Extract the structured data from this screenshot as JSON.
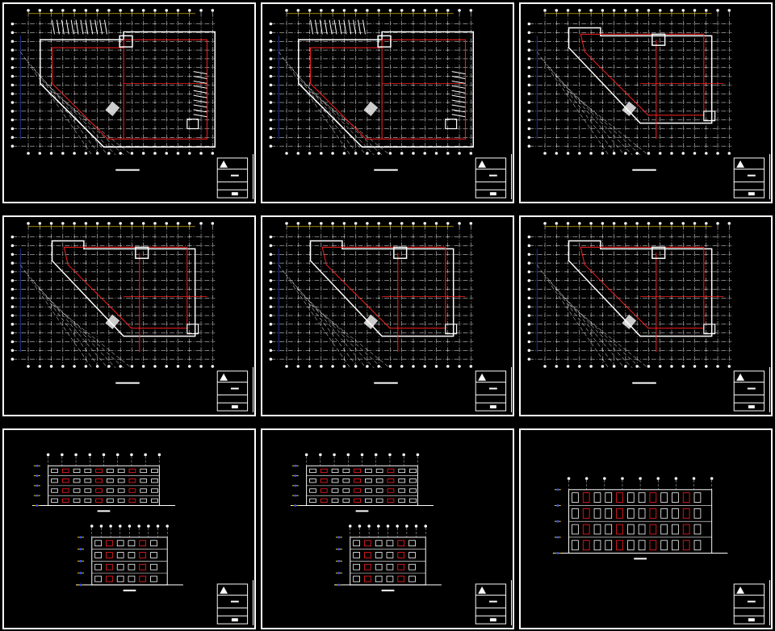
{
  "colors": {
    "background": "#000000",
    "frame": "#ffffff",
    "grid": "#ffffff",
    "walls": "#ff2020",
    "accent": "#ffd700",
    "dims": "#3050ff",
    "green": "#20c020"
  },
  "sheets": [
    {
      "kind": "plan",
      "variant": "basement-1"
    },
    {
      "kind": "plan",
      "variant": "basement-2"
    },
    {
      "kind": "plan",
      "variant": "ground"
    },
    {
      "kind": "plan",
      "variant": "first"
    },
    {
      "kind": "plan",
      "variant": "typical"
    },
    {
      "kind": "plan",
      "variant": "roof"
    },
    {
      "kind": "elevations",
      "variant": "front-side"
    },
    {
      "kind": "elevations",
      "variant": "rear-side"
    },
    {
      "kind": "section",
      "variant": "section"
    }
  ]
}
